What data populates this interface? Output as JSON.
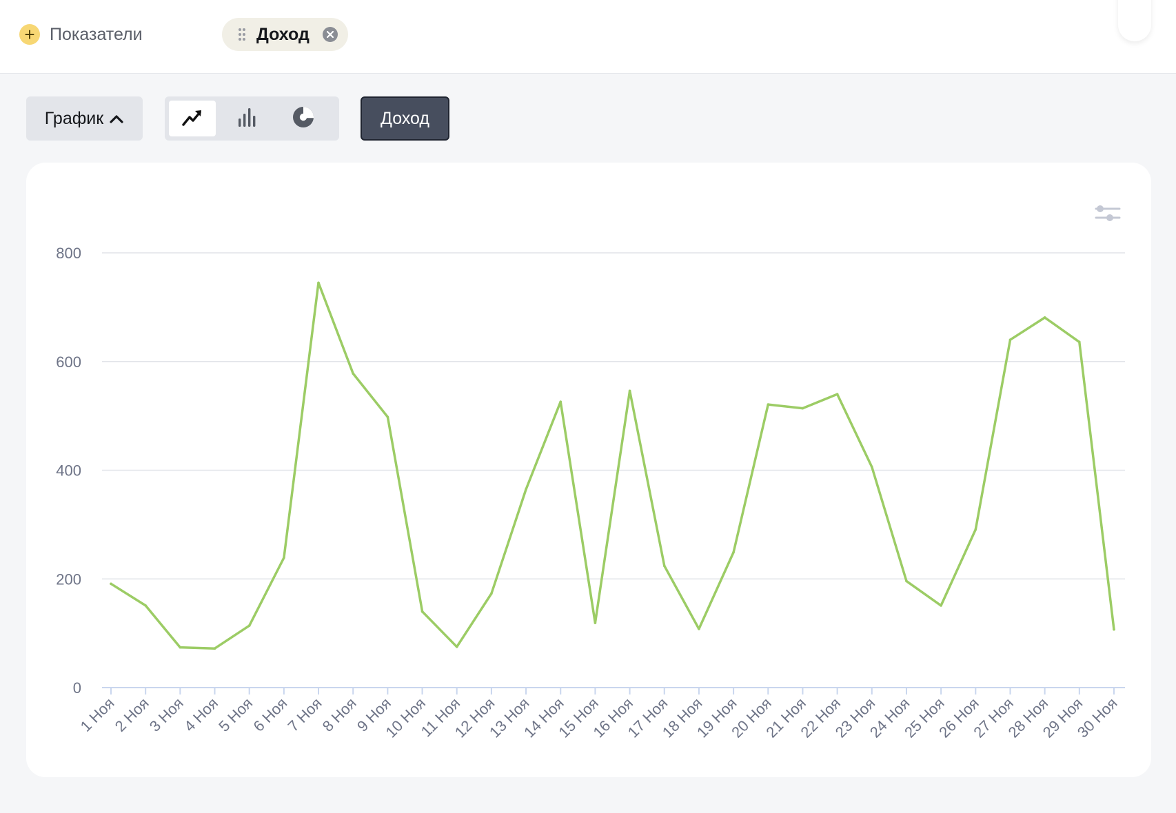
{
  "header": {
    "add_metrics_label": "Показатели",
    "active_metric_chip": "Доход"
  },
  "toolbar": {
    "view_label": "График",
    "chart_types": [
      {
        "name": "line-chart-icon",
        "active": true
      },
      {
        "name": "bar-chart-icon",
        "active": false
      },
      {
        "name": "pie-chart-icon",
        "active": false
      }
    ],
    "metric_button_label": "Доход"
  },
  "colors": {
    "series": "#9ccc65",
    "grid": "#e2e4e9",
    "accent_yellow": "#f7d774",
    "dark_button": "#474e5e"
  },
  "chart_data": {
    "type": "line",
    "title": "",
    "xlabel": "",
    "ylabel": "",
    "categories": [
      "1 Ноя",
      "2 Ноя",
      "3 Ноя",
      "4 Ноя",
      "5 Ноя",
      "6 Ноя",
      "7 Ноя",
      "8 Ноя",
      "9 Ноя",
      "10 Ноя",
      "11 Ноя",
      "12 Ноя",
      "13 Ноя",
      "14 Ноя",
      "15 Ноя",
      "16 Ноя",
      "17 Ноя",
      "18 Ноя",
      "19 Ноя",
      "20 Ноя",
      "21 Ноя",
      "22 Ноя",
      "23 Ноя",
      "24 Ноя",
      "25 Ноя",
      "26 Ноя",
      "27 Ноя",
      "28 Ноя",
      "29 Ноя",
      "30 Ноя"
    ],
    "series": [
      {
        "values": [
          191,
          151,
          74,
          72,
          114,
          239,
          745,
          578,
          498,
          140,
          75,
          173,
          365,
          526,
          119,
          546,
          224,
          108,
          249,
          521,
          514,
          540,
          406,
          196,
          151,
          291,
          640,
          681,
          636,
          107
        ]
      }
    ],
    "ylim": [
      0,
      800
    ],
    "yticks": [
      0,
      200,
      400,
      600,
      800
    ],
    "grid": true,
    "legend": "none"
  }
}
